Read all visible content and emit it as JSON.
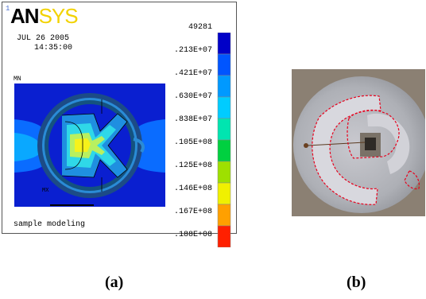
{
  "panel_a": {
    "logo_prefix": "AN",
    "logo_suffix": "SYS",
    "corner_mark": "1",
    "date": "JUL 26 2005",
    "time": "14:35:00",
    "mn_label": "MN",
    "mx_label": "MX",
    "footer": "sample modeling",
    "legend": {
      "values": [
        "49281",
        ".213E+07",
        ".421E+07",
        ".630E+07",
        ".838E+07",
        ".105E+08",
        ".125E+08",
        ".146E+08",
        ".167E+08",
        ".188E+08"
      ],
      "colors": [
        "#0000c8",
        "#0055ff",
        "#0099ff",
        "#00ccff",
        "#00e5b0",
        "#00d040",
        "#9ee000",
        "#f0f000",
        "#ffa000",
        "#ff2000"
      ]
    }
  },
  "panel_b": {
    "outline_color": "#e8001c"
  },
  "captions": {
    "a": "(a)",
    "b": "(b)"
  }
}
